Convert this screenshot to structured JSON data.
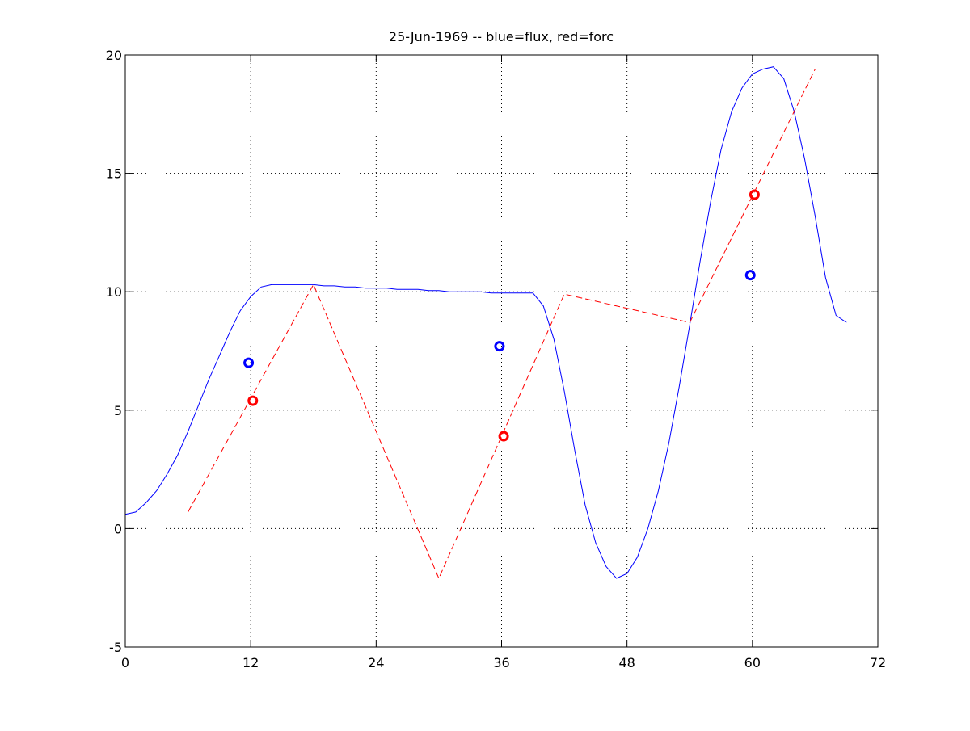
{
  "chart_data": {
    "type": "line",
    "title": "25-Jun-1969 -- blue=flux, red=forc",
    "xlabel": "",
    "ylabel": "",
    "xlim": [
      0,
      72
    ],
    "ylim": [
      -5,
      20
    ],
    "xticks": [
      0,
      12,
      24,
      36,
      48,
      60,
      72
    ],
    "yticks": [
      -5,
      0,
      5,
      10,
      15,
      20
    ],
    "grid": true,
    "grid_x_lines": [
      12,
      24,
      36,
      48,
      60
    ],
    "grid_y_lines": [
      0,
      5,
      10,
      15
    ],
    "colors": {
      "flux": "#0000ff",
      "forc": "#ff0000",
      "grid": "#000000"
    },
    "series": [
      {
        "color": "#0000ff",
        "style": "solid",
        "x": [
          0,
          1,
          2,
          3,
          4,
          5,
          6,
          7,
          8,
          9,
          10,
          11,
          12,
          13,
          14,
          15,
          16,
          17,
          18,
          19,
          20,
          21,
          22,
          23,
          24,
          25,
          26,
          27,
          28,
          29,
          30,
          31,
          32,
          33,
          34,
          35,
          36,
          37,
          38,
          39,
          40,
          41,
          42,
          43,
          44,
          45,
          46,
          47,
          48,
          49,
          50,
          51,
          52,
          53,
          54,
          55,
          56,
          57,
          58,
          59,
          60,
          61,
          62,
          63,
          64,
          65,
          66,
          67,
          68,
          69,
          70,
          71
        ],
        "y": [
          0.6,
          0.7,
          1.1,
          1.6,
          2.3,
          3.1,
          4.1,
          5.2,
          6.3,
          7.3,
          8.3,
          9.2,
          9.8,
          10.2,
          10.3,
          10.3,
          10.3,
          10.3,
          10.3,
          10.25,
          10.25,
          10.2,
          10.2,
          10.15,
          10.15,
          10.15,
          10.1,
          10.1,
          10.1,
          10.05,
          10.05,
          10.0,
          10.0,
          10.0,
          10.0,
          9.95,
          9.95,
          9.95,
          9.95,
          9.95,
          9.4,
          8.0,
          5.8,
          3.3,
          1.0,
          -0.6,
          -1.6,
          -2.1,
          -1.9,
          -1.2,
          0.0,
          1.6,
          3.6,
          6.0,
          8.6,
          11.3,
          13.8,
          16.0,
          17.6,
          18.6,
          19.2,
          19.4,
          19.5,
          19.0,
          17.6,
          15.6,
          13.2,
          10.6,
          9.0,
          8.7,
          null,
          null
        ],
        "markers": {
          "x": [
            11.8,
            35.8,
            59.8
          ],
          "y": [
            7.0,
            7.7,
            10.7
          ]
        }
      },
      {
        "color": "#ff0000",
        "style": "dashed",
        "x": [
          6,
          18,
          30,
          42,
          54,
          66
        ],
        "y": [
          0.7,
          10.3,
          -2.1,
          9.9,
          8.7,
          19.4
        ],
        "markers": {
          "x": [
            12.2,
            36.2,
            60.2
          ],
          "y": [
            5.4,
            3.9,
            14.1
          ]
        }
      }
    ]
  }
}
